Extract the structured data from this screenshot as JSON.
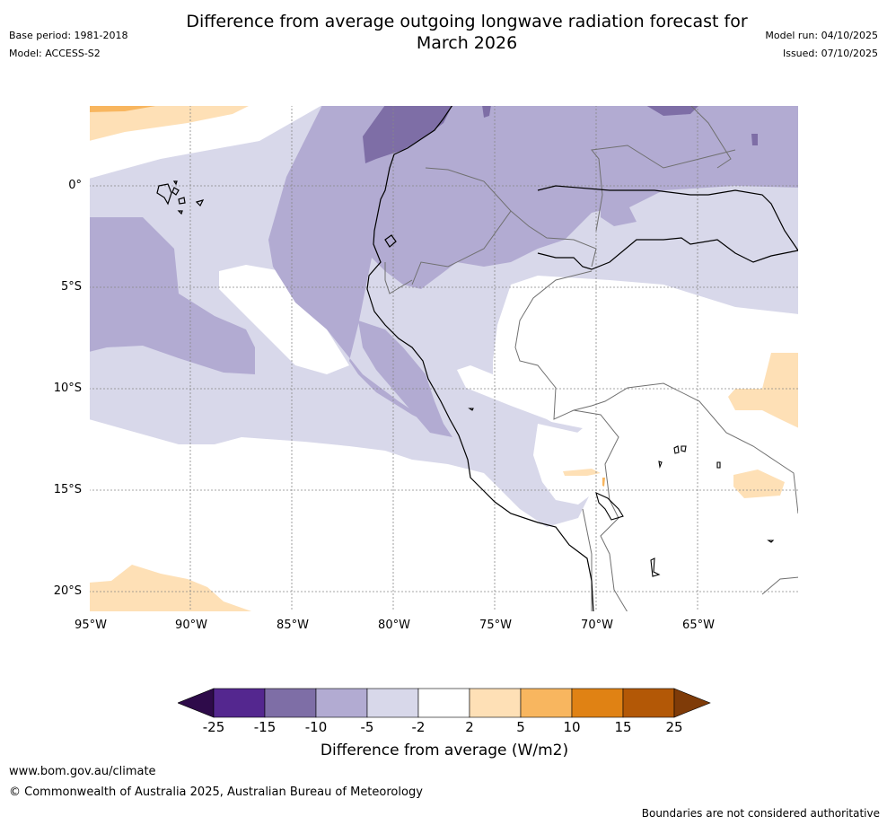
{
  "header": {
    "title_line1": "Difference from average outgoing longwave radiation forecast for",
    "title_line2": "March 2026",
    "base_period": "Base period: 1981-2018",
    "model": "Model: ACCESS-S2",
    "model_run": "Model run: 04/10/2025",
    "issued": "Issued: 07/10/2025"
  },
  "map": {
    "lat_labels": [
      "0°",
      "5°S",
      "10°S",
      "15°S",
      "20°S"
    ],
    "lon_labels": [
      "95°W",
      "90°W",
      "85°W",
      "80°W",
      "75°W",
      "70°W",
      "65°W"
    ],
    "lat_values": [
      0,
      -5,
      -10,
      -15,
      -20
    ],
    "lon_values": [
      -95,
      -90,
      -85,
      -80,
      -75,
      -70,
      -65
    ],
    "extent": {
      "lon_min": -95,
      "lon_max": -60,
      "lat_min": -21,
      "lat_max": 4
    }
  },
  "colorbar": {
    "title": "Difference from average (W/m2)",
    "tick_labels": [
      "-25",
      "-15",
      "-10",
      "-5",
      "-2",
      "2",
      "5",
      "10",
      "15",
      "25"
    ],
    "colors": {
      "under": "#2e0b4a",
      "bins": [
        "#54278f",
        "#7e6ea6",
        "#b2abd2",
        "#d8d8ea",
        "#ffffff",
        "#fee0b6",
        "#f8b65f",
        "#e08214",
        "#b35806"
      ],
      "over": "#7f3b08"
    }
  },
  "footer": {
    "website": "www.bom.gov.au/climate",
    "copyright": "© Commonwealth of Australia 2025, Australian Bureau of Meteorology",
    "disclaimer": "Boundaries are not considered authoritative"
  }
}
